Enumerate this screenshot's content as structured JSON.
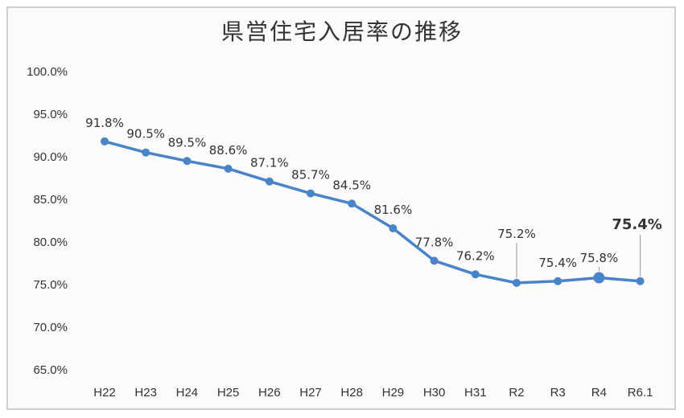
{
  "chart_data": {
    "type": "line",
    "title": "県営住宅入居率の推移",
    "xlabel": "",
    "ylabel": "",
    "categories": [
      "H22",
      "H23",
      "H24",
      "H25",
      "H26",
      "H27",
      "H28",
      "H29",
      "H30",
      "H31",
      "R2",
      "R3",
      "R4",
      "R6.1"
    ],
    "series": [
      {
        "values": [
          91.8,
          90.5,
          89.5,
          88.6,
          87.1,
          85.7,
          84.5,
          81.6,
          77.8,
          76.2,
          75.2,
          75.4,
          75.8,
          75.4
        ],
        "labels": [
          "91.8%",
          "90.5%",
          "89.5%",
          "88.6%",
          "87.1%",
          "85.7%",
          "84.5%",
          "81.6%",
          "77.8%",
          "76.2%",
          "75.2%",
          "75.4%",
          "75.8%",
          ""
        ],
        "color": "#4a84c8"
      }
    ],
    "highlight_label": "75.4%",
    "ylim": [
      65,
      100
    ],
    "yticks": [
      "65.0%",
      "70.0%",
      "75.0%",
      "80.0%",
      "85.0%",
      "90.0%",
      "95.0%",
      "100.0%"
    ],
    "grid": false,
    "legend": "none"
  }
}
